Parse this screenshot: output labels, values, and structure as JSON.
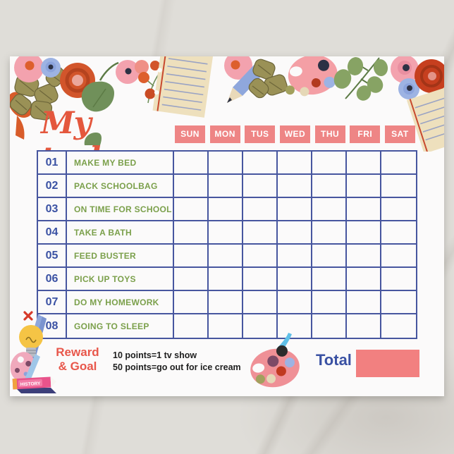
{
  "title": "My tasks",
  "days": [
    "SUN",
    "MON",
    "TUS",
    "WED",
    "THU",
    "FRI",
    "SAT"
  ],
  "tasks": [
    {
      "num": "01",
      "label": "MAKE MY BED"
    },
    {
      "num": "02",
      "label": "PACK SCHOOLBAG"
    },
    {
      "num": "03",
      "label": "ON TIME FOR SCHOOL"
    },
    {
      "num": "04",
      "label": "TAKE A BATH"
    },
    {
      "num": "05",
      "label": "FEED BUSTER"
    },
    {
      "num": "06",
      "label": "PICK UP TOYS"
    },
    {
      "num": "07",
      "label": "DO MY HOMEWORK"
    },
    {
      "num": "08",
      "label": "GOING TO SLEEP"
    }
  ],
  "reward": {
    "heading_line1": "Reward",
    "heading_line2": "& Goal",
    "rules": [
      "10 points=1 tv show",
      "50 points=go out for ice cream"
    ]
  },
  "total": {
    "label": "Total"
  },
  "decorations": {
    "history_book_label": "HISTORY"
  },
  "colors": {
    "accent_red": "#e4573d",
    "day_box": "#ee8585",
    "grid_blue": "#47569f",
    "task_green": "#7ba04b",
    "number_blue": "#3a51a3",
    "total_box": "#f28080",
    "reward_red": "#e8564a",
    "points_black": "#1e1e1e",
    "page_bg": "#fbfafa"
  }
}
